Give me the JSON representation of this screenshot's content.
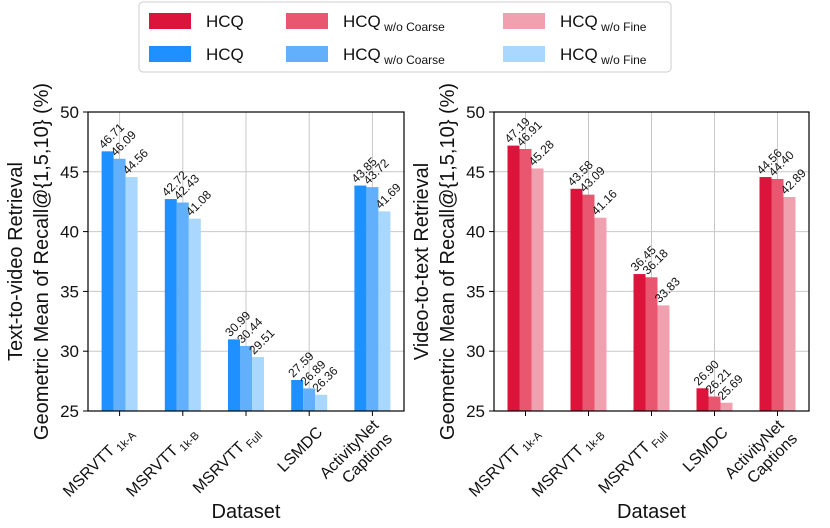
{
  "legend": {
    "entries": [
      {
        "base": "HCQ",
        "sub": "",
        "color": "#dc143c"
      },
      {
        "base": "HCQ",
        "sub": "w/o Coarse",
        "color": "#e8566f"
      },
      {
        "base": "HCQ",
        "sub": "w/o Fine",
        "color": "#f1a0b0"
      },
      {
        "base": "HCQ",
        "sub": "",
        "color": "#1e90ff"
      },
      {
        "base": "HCQ",
        "sub": "w/o Coarse",
        "color": "#62b0fb"
      },
      {
        "base": "HCQ",
        "sub": "w/o Fine",
        "color": "#a9d7fd"
      }
    ]
  },
  "chart_data": [
    {
      "type": "bar",
      "ylabel_line1": "Text-to-video Retrieval",
      "ylabel_line2": "Geometric Mean of Recall@{1,5,10} (%)",
      "xlabel": "Dataset",
      "ylim": [
        25,
        50
      ],
      "yticks": [
        "25",
        "30",
        "35",
        "40",
        "45",
        "50"
      ],
      "categories": [
        {
          "base": "MSRVTT",
          "sub": "1k-A"
        },
        {
          "base": "MSRVTT",
          "sub": "1k-B"
        },
        {
          "base": "MSRVTT",
          "sub": "Full"
        },
        {
          "base": "LSMDC",
          "sub": ""
        },
        {
          "base": "ActivityNet",
          "base2": "Captions",
          "sub": ""
        }
      ],
      "series": [
        {
          "name": "HCQ",
          "color": "#1e90ff",
          "values": [
            46.71,
            42.72,
            30.99,
            27.59,
            43.85
          ],
          "labels": [
            "46.71",
            "42.72",
            "30.99",
            "27.59",
            "43.85"
          ]
        },
        {
          "name": "HCQ w/o Coarse",
          "color": "#62b0fb",
          "values": [
            46.09,
            42.43,
            30.44,
            26.89,
            43.72
          ],
          "labels": [
            "46.09",
            "42.43",
            "30.44",
            "26.89",
            "43.72"
          ]
        },
        {
          "name": "HCQ w/o Fine",
          "color": "#a9d7fd",
          "values": [
            44.56,
            41.08,
            29.51,
            26.36,
            41.69
          ],
          "labels": [
            "44.56",
            "41.08",
            "29.51",
            "26.36",
            "41.69"
          ]
        }
      ]
    },
    {
      "type": "bar",
      "ylabel_line1": "Video-to-text Retrieval",
      "ylabel_line2": "Geometric Mean of Recall@{1,5,10} (%)",
      "xlabel": "Dataset",
      "ylim": [
        25,
        50
      ],
      "yticks": [
        "25",
        "30",
        "35",
        "40",
        "45",
        "50"
      ],
      "categories": [
        {
          "base": "MSRVTT",
          "sub": "1k-A"
        },
        {
          "base": "MSRVTT",
          "sub": "1k-B"
        },
        {
          "base": "MSRVTT",
          "sub": "Full"
        },
        {
          "base": "LSMDC",
          "sub": ""
        },
        {
          "base": "ActivityNet",
          "base2": "Captions",
          "sub": ""
        }
      ],
      "series": [
        {
          "name": "HCQ",
          "color": "#dc143c",
          "values": [
            47.19,
            43.58,
            36.45,
            26.9,
            44.56
          ],
          "labels": [
            "47.19",
            "43.58",
            "36.45",
            "26.90",
            "44.56"
          ]
        },
        {
          "name": "HCQ w/o Coarse",
          "color": "#e8566f",
          "values": [
            46.91,
            43.09,
            36.18,
            26.21,
            44.4
          ],
          "labels": [
            "46.91",
            "43.09",
            "36.18",
            "26.21",
            "44.40"
          ]
        },
        {
          "name": "HCQ w/o Fine",
          "color": "#f1a0b0",
          "values": [
            45.28,
            41.16,
            33.83,
            25.69,
            42.89
          ],
          "labels": [
            "45.28",
            "41.16",
            "33.83",
            "25.69",
            "42.89"
          ]
        }
      ]
    }
  ]
}
